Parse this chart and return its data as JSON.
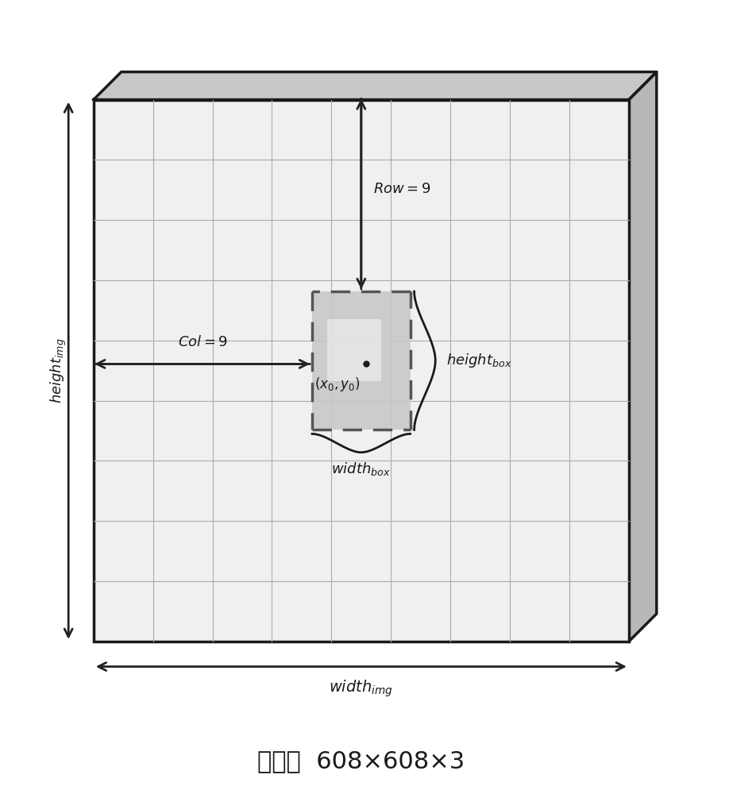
{
  "background_color": "#ffffff",
  "grid_color": "#aaaaaa",
  "grid_rows": 9,
  "grid_cols": 9,
  "box_color": "#555555",
  "dashed_box_color": "#555555",
  "arrow_color": "#222222",
  "text_color": "#1a1a1a",
  "label_row": "Row=9",
  "label_col": "Col=9",
  "label_input": "输入：  608×608×3",
  "fig_width": 9.18,
  "fig_height": 10.0
}
